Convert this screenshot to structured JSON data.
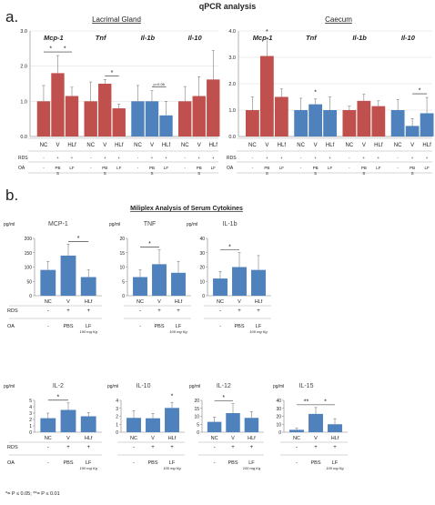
{
  "colors": {
    "red": "#c0504d",
    "blue": "#4f81bd",
    "axis": "#808080",
    "grid": "#d9d9d9"
  },
  "panel_a_label": "a.",
  "panel_b_label": "b.",
  "panel_a_title": "qPCR analysis",
  "panel_b_title": "Miliplex Analysis of Serum Cytokines",
  "footnote": "*= P ≤ 0.05; **= P ≤ 0.01",
  "chart_data": [
    {
      "type": "bar",
      "panel": "a",
      "title": "Lacrimal Gland",
      "ylim": [
        0,
        3
      ],
      "yticks": [
        0,
        1,
        2,
        3
      ],
      "genes": [
        {
          "name": "Mcp-1",
          "color": "red",
          "categories": [
            "NC",
            "V",
            "HLf"
          ],
          "values": [
            1.0,
            1.8,
            1.15
          ],
          "err": [
            0.45,
            0.5,
            0.25
          ],
          "sig": [
            [
              0,
              1,
              "*"
            ],
            [
              1,
              2,
              "*"
            ]
          ]
        },
        {
          "name": "Tnf",
          "color": "red",
          "categories": [
            "NC",
            "V",
            "HLf"
          ],
          "values": [
            1.0,
            1.5,
            0.8
          ],
          "err": [
            0.55,
            0.12,
            0.12
          ],
          "sig": [
            [
              1,
              2,
              "*"
            ]
          ]
        },
        {
          "name": "Il-1b",
          "color": "blue",
          "categories": [
            "NC",
            "V",
            "HLf"
          ],
          "values": [
            1.0,
            1.0,
            0.6
          ],
          "err": [
            0.45,
            0.3,
            0.4
          ],
          "sig": [
            [
              1,
              2,
              "p=0.06"
            ]
          ]
        },
        {
          "name": "Il-10",
          "color": "red",
          "categories": [
            "NC",
            "V",
            "HLf"
          ],
          "values": [
            1.0,
            1.15,
            1.62
          ],
          "err": [
            0.42,
            0.55,
            0.82
          ],
          "sig": []
        }
      ],
      "rows": [
        {
          "label": "RDS",
          "values": [
            "-",
            "+",
            "+",
            "-",
            "+",
            "+",
            "-",
            "+",
            "+",
            "-",
            "+",
            "+"
          ]
        },
        {
          "label": "OA",
          "values": [
            "-",
            "PB S",
            "LF",
            "-",
            "PB S",
            "LF",
            "-",
            "PB S",
            "LF",
            "-",
            "PB S",
            "LF"
          ]
        }
      ]
    },
    {
      "type": "bar",
      "panel": "a",
      "title": "Caecum",
      "ylim": [
        0,
        4
      ],
      "yticks": [
        0,
        1,
        2,
        3,
        4
      ],
      "genes": [
        {
          "name": "Mcp-1",
          "color": "red",
          "categories": [
            "NC",
            "V",
            "HLf"
          ],
          "values": [
            1.0,
            3.05,
            1.5
          ],
          "err": [
            0.5,
            0.65,
            0.3
          ],
          "sig": [
            [
              1,
              1,
              "*"
            ]
          ]
        },
        {
          "name": "Tnf",
          "color": "blue",
          "categories": [
            "NC",
            "V",
            "HLf"
          ],
          "values": [
            1.0,
            1.22,
            1.0
          ],
          "err": [
            0.45,
            0.2,
            0.5
          ],
          "sig": [
            [
              1,
              1,
              "*"
            ]
          ]
        },
        {
          "name": "Il-1b",
          "color": "red",
          "categories": [
            "NC",
            "V",
            "HLf"
          ],
          "values": [
            1.0,
            1.35,
            1.15
          ],
          "err": [
            0.15,
            0.25,
            0.2
          ],
          "sig": []
        },
        {
          "name": "Il-10",
          "color": "blue",
          "categories": [
            "NC",
            "V",
            "HLf"
          ],
          "values": [
            1.0,
            0.4,
            0.88
          ],
          "err": [
            0.4,
            0.28,
            0.6
          ],
          "sig": [
            [
              1,
              2,
              "*"
            ]
          ]
        }
      ],
      "rows": [
        {
          "label": "RDS",
          "values": [
            "-",
            "+",
            "+",
            "-",
            "+",
            "+",
            "-",
            "+",
            "+",
            "-",
            "+",
            "+"
          ]
        },
        {
          "label": "OA",
          "values": [
            "-",
            "PB S",
            "LF",
            "-",
            "PB S",
            "LF",
            "-",
            "PB S",
            "LF",
            "-",
            "PB S",
            "LF"
          ]
        }
      ]
    },
    {
      "type": "bar",
      "panel": "b",
      "title": "MCP-1",
      "unit": "pg/ml",
      "ylim": [
        0,
        200
      ],
      "yticks": [
        0,
        50,
        100,
        150,
        200
      ],
      "categories": [
        "NC",
        "V",
        "HLf"
      ],
      "values": [
        90,
        140,
        65
      ],
      "err": [
        30,
        40,
        25
      ],
      "sig": [
        [
          1,
          2,
          "*"
        ]
      ],
      "rds": [
        "-",
        "+",
        "+"
      ],
      "oa": [
        "-",
        "PBS",
        "LF"
      ],
      "dose": "100 mg Kg",
      "row_labels": true
    },
    {
      "type": "bar",
      "panel": "b",
      "title": "TNF",
      "unit": "pg/ml",
      "ylim": [
        0,
        20
      ],
      "yticks": [
        0,
        5,
        10,
        15,
        20
      ],
      "categories": [
        "NC",
        "V",
        "HLf"
      ],
      "values": [
        6.5,
        11,
        8
      ],
      "err": [
        2.5,
        5,
        4
      ],
      "sig": [
        [
          0,
          1,
          "*"
        ]
      ],
      "rds": [
        "-",
        "+",
        "+"
      ],
      "oa": [
        "-",
        "PBS",
        "LF"
      ],
      "dose": "100 mg Kg",
      "row_labels": false
    },
    {
      "type": "bar",
      "panel": "b",
      "title": "IL-1b",
      "unit": "pg/ml",
      "ylim": [
        0,
        40
      ],
      "yticks": [
        0,
        10,
        20,
        30,
        40
      ],
      "categories": [
        "NC",
        "V",
        "HLf"
      ],
      "values": [
        12,
        20,
        18
      ],
      "err": [
        5,
        10,
        10
      ],
      "sig": [
        [
          0,
          1,
          "*"
        ]
      ],
      "rds": [
        "-",
        "+",
        "+"
      ],
      "oa": [
        "-",
        "PBS",
        "LF"
      ],
      "dose": "100 mg Kg",
      "row_labels": false
    },
    {
      "type": "bar",
      "panel": "b",
      "title": "IL-2",
      "unit": "pg/ml",
      "ylim": [
        0,
        5
      ],
      "yticks": [
        0,
        1,
        2,
        3,
        4,
        5
      ],
      "categories": [
        "NC",
        "V",
        "HLf"
      ],
      "values": [
        2.2,
        3.5,
        2.5
      ],
      "err": [
        0.8,
        1.1,
        0.6
      ],
      "sig": [
        [
          0,
          1,
          "*"
        ]
      ],
      "rds": [
        "-",
        "+",
        "+"
      ],
      "oa": [
        "-",
        "PBS",
        "LF"
      ],
      "dose": "100 mg Kg",
      "row_labels": true
    },
    {
      "type": "bar",
      "panel": "b",
      "title": "IL-10",
      "unit": "pg/ml",
      "ylim": [
        0,
        4
      ],
      "yticks": [
        0,
        1,
        2,
        3,
        4
      ],
      "categories": [
        "NC",
        "V",
        "HLf"
      ],
      "values": [
        1.8,
        1.75,
        3.05
      ],
      "err": [
        0.9,
        0.6,
        0.7
      ],
      "sig": [
        [
          2,
          2,
          "*"
        ]
      ],
      "rds": [
        "-",
        "+",
        "+"
      ],
      "oa": [
        "-",
        "PBS",
        "LF"
      ],
      "dose": "100 mg Kg",
      "row_labels": false
    },
    {
      "type": "bar",
      "panel": "b",
      "title": "IL-12",
      "unit": "pg/ml",
      "ylim": [
        0,
        20
      ],
      "yticks": [
        0,
        5,
        10,
        15,
        20
      ],
      "categories": [
        "NC",
        "V",
        "HLf"
      ],
      "values": [
        6.5,
        12,
        9
      ],
      "err": [
        3,
        6,
        4
      ],
      "sig": [
        [
          0,
          1,
          "*"
        ]
      ],
      "rds": [
        "-",
        "+",
        "+"
      ],
      "oa": [
        "-",
        "PBS",
        "LF"
      ],
      "dose": "100 mg Kg",
      "row_labels": false
    },
    {
      "type": "bar",
      "panel": "b",
      "title": "IL-15",
      "unit": "pg/ml",
      "ylim": [
        0,
        40
      ],
      "yticks": [
        0,
        10,
        20,
        30,
        40
      ],
      "categories": [
        "NC",
        "V",
        "HLf"
      ],
      "values": [
        3,
        23,
        10
      ],
      "err": [
        2,
        8,
        7
      ],
      "sig": [
        [
          0,
          1,
          "**"
        ],
        [
          1,
          2,
          "*"
        ]
      ],
      "rds": [
        "-",
        "+",
        "+"
      ],
      "oa": [
        "-",
        "PBS",
        "LF"
      ],
      "dose": "100 mg Kg",
      "row_labels": false
    }
  ]
}
